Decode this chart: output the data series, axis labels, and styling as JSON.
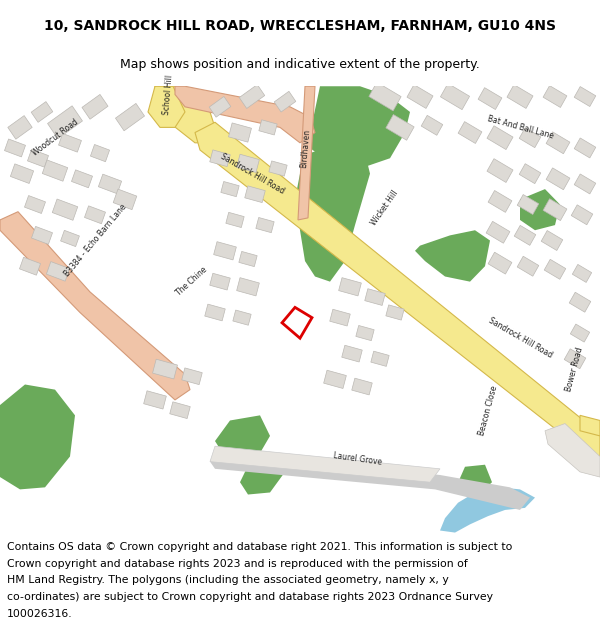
{
  "title_line1": "10, SANDROCK HILL ROAD, WRECCLESHAM, FARNHAM, GU10 4NS",
  "title_line2": "Map shows position and indicative extent of the property.",
  "footer_lines": [
    "Contains OS data © Crown copyright and database right 2021. This information is subject to",
    "Crown copyright and database rights 2023 and is reproduced with the permission of",
    "HM Land Registry. The polygons (including the associated geometry, namely x, y",
    "co-ordinates) are subject to Crown copyright and database rights 2023 Ordnance Survey",
    "100026316."
  ],
  "map_bg": "#f2f0ec",
  "road_yellow_fill": "#f5e98e",
  "road_yellow_edge": "#d4b84a",
  "road_salmon_fill": "#f0c4a8",
  "road_salmon_edge": "#d49a78",
  "green_fill": "#6aaa5a",
  "green_edge": "none",
  "blue_fill": "#90c8e0",
  "building_fill": "#dddad5",
  "building_edge": "#bcb9b4",
  "road_line_color": "#cccccc",
  "red_outline": "#dd0000",
  "white_fill": "#ffffff",
  "title_fontsize": 10,
  "subtitle_fontsize": 9,
  "footer_fontsize": 7.8
}
